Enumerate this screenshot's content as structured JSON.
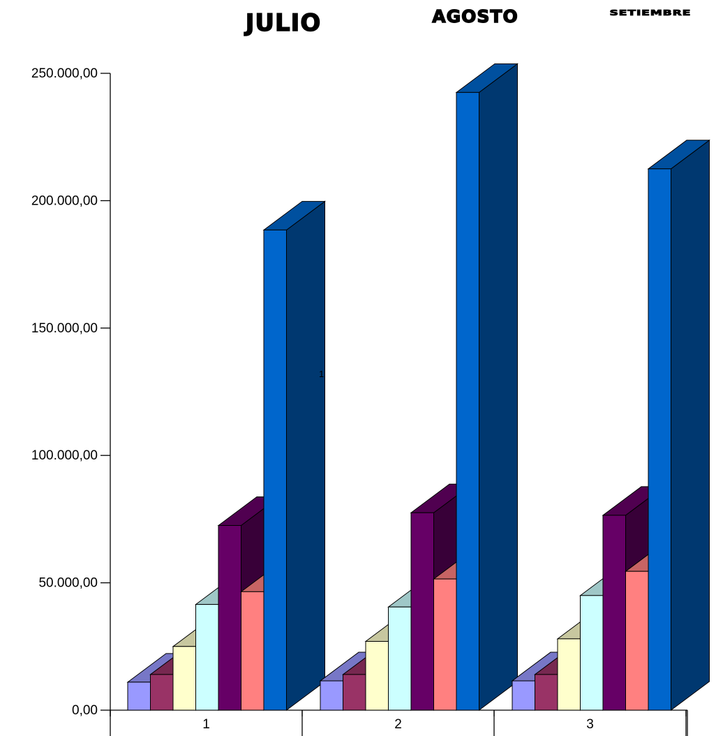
{
  "chart_data": {
    "type": "bar",
    "title": "",
    "xlabel": "",
    "ylabel": "",
    "month_labels": [
      "JULIO",
      "AGOSTO",
      "SETIEMBRE"
    ],
    "categories": [
      "1",
      "2",
      "3"
    ],
    "y_ticks": [
      "0,00",
      "50.000,00",
      "100.000,00",
      "150.000,00",
      "200.000,00",
      "250.000,00"
    ],
    "ylim": [
      0,
      250000
    ],
    "grid": false,
    "stray_label": "1",
    "series": [
      {
        "values": [
          11000,
          11500,
          11500
        ],
        "color": "#9999ff"
      },
      {
        "values": [
          14000,
          14000,
          14000
        ],
        "color": "#993366"
      },
      {
        "values": [
          25000,
          27000,
          28000
        ],
        "color": "#ffffcc"
      },
      {
        "values": [
          41500,
          40500,
          45000
        ],
        "color": "#ccffff"
      },
      {
        "values": [
          72500,
          77500,
          76500
        ],
        "color": "#660066"
      },
      {
        "values": [
          46500,
          51500,
          54500
        ],
        "color": "#ff8080"
      },
      {
        "values": [
          188500,
          242500,
          212500
        ],
        "color": "#0066cc"
      }
    ]
  }
}
